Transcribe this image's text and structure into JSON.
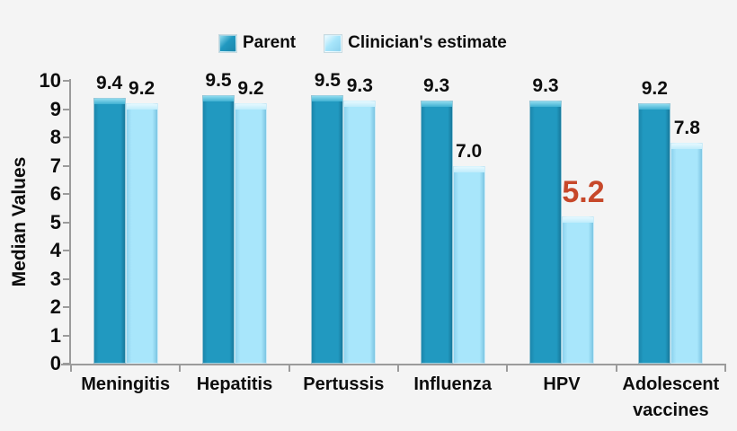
{
  "chart_data": {
    "type": "bar",
    "title": "",
    "xlabel": "",
    "ylabel": "Median Values",
    "ylim": [
      0,
      10
    ],
    "ytick_step": 1,
    "grid": false,
    "legend_position": "top",
    "categories": [
      "Meningitis",
      "Hepatitis",
      "Pertussis",
      "Influenza",
      "HPV",
      "Adolescent vaccines"
    ],
    "series": [
      {
        "name": "Parent",
        "color": "#2199c0",
        "values": [
          9.4,
          9.5,
          9.5,
          9.3,
          9.3,
          9.2
        ]
      },
      {
        "name": "Clinician's estimate",
        "color": "#a8e6fb",
        "values": [
          9.2,
          9.2,
          9.3,
          7.0,
          5.2,
          7.8
        ]
      }
    ],
    "highlight": {
      "series_index": 1,
      "category_index": 4,
      "label": "5.2",
      "color": "#c7482a"
    }
  },
  "colors": {
    "background": "#f4f4f4",
    "axis": "#9b9b9b",
    "text": "#0d0d0d",
    "parent_bar": "#2199c0",
    "clinician_bar": "#a8e6fb",
    "highlight_value": "#c7482a"
  }
}
